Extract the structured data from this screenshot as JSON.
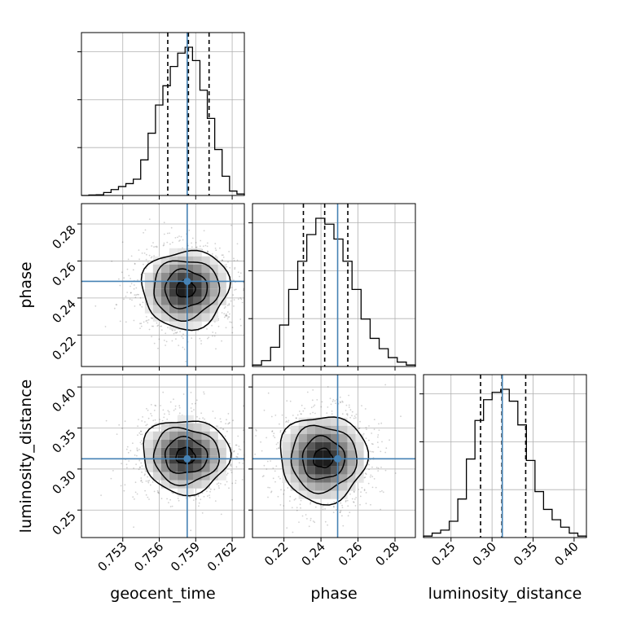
{
  "colors": {
    "truth": "#4682b4",
    "histogram": "#000000",
    "quantile": "#000000",
    "grid": "#b0b0b0",
    "density": "#000000"
  },
  "chart_data": {
    "type": "corner",
    "parameters": [
      "geocent_time",
      "phase",
      "luminosity_distance"
    ],
    "grid": true,
    "truths": {
      "geocent_time": 0.7583,
      "phase": 0.249,
      "luminosity_distance": 0.3125
    },
    "quantiles": {
      "geocent_time": [
        0.7567,
        0.7584,
        0.7601
      ],
      "phase": [
        0.2305,
        0.242,
        0.2545
      ],
      "luminosity_distance": [
        0.286,
        0.312,
        0.341
      ]
    },
    "ranges": {
      "geocent_time": [
        0.7496,
        0.763
      ],
      "phase": [
        0.203,
        0.291
      ],
      "luminosity_distance": [
        0.2165,
        0.415
      ]
    },
    "ticks": {
      "geocent_time": [
        0.753,
        0.756,
        0.759,
        0.762
      ],
      "phase": [
        0.22,
        0.24,
        0.26,
        0.28
      ],
      "luminosity_distance": [
        0.25,
        0.3,
        0.35,
        0.4
      ]
    },
    "tick_labels": {
      "geocent_time": [
        "0.753",
        "0.756",
        "0.759",
        "0.762"
      ],
      "phase": [
        "0.22",
        "0.24",
        "0.26",
        "0.28"
      ],
      "luminosity_distance": [
        "0.25",
        "0.30",
        "0.35",
        "0.40"
      ]
    },
    "histograms": {
      "geocent_time": [
        0.0,
        0.003,
        0.005,
        0.02,
        0.04,
        0.06,
        0.08,
        0.11,
        0.24,
        0.42,
        0.61,
        0.74,
        0.87,
        0.96,
        1.0,
        0.91,
        0.71,
        0.52,
        0.31,
        0.13,
        0.03,
        0.01
      ],
      "phase": [
        0.01,
        0.04,
        0.13,
        0.28,
        0.52,
        0.71,
        0.89,
        1.0,
        0.96,
        0.86,
        0.71,
        0.52,
        0.32,
        0.19,
        0.12,
        0.06,
        0.03,
        0.01
      ],
      "luminosity_distance": [
        0.01,
        0.03,
        0.05,
        0.11,
        0.26,
        0.53,
        0.79,
        0.93,
        0.98,
        1.0,
        0.92,
        0.76,
        0.52,
        0.31,
        0.19,
        0.12,
        0.07,
        0.03,
        0.01
      ]
    },
    "peaks_2d": {
      "phase_vs_geocent_time": [
        0.7587,
        0.2405
      ],
      "luminosity_distance_vs_geocent_time": [
        0.7587,
        0.318
      ],
      "luminosity_distance_vs_phase": [
        0.242,
        0.315
      ]
    },
    "xlabels": [
      "geocent_time",
      "phase",
      "luminosity_distance"
    ],
    "ylabels": [
      "phase",
      "luminosity_distance"
    ]
  }
}
